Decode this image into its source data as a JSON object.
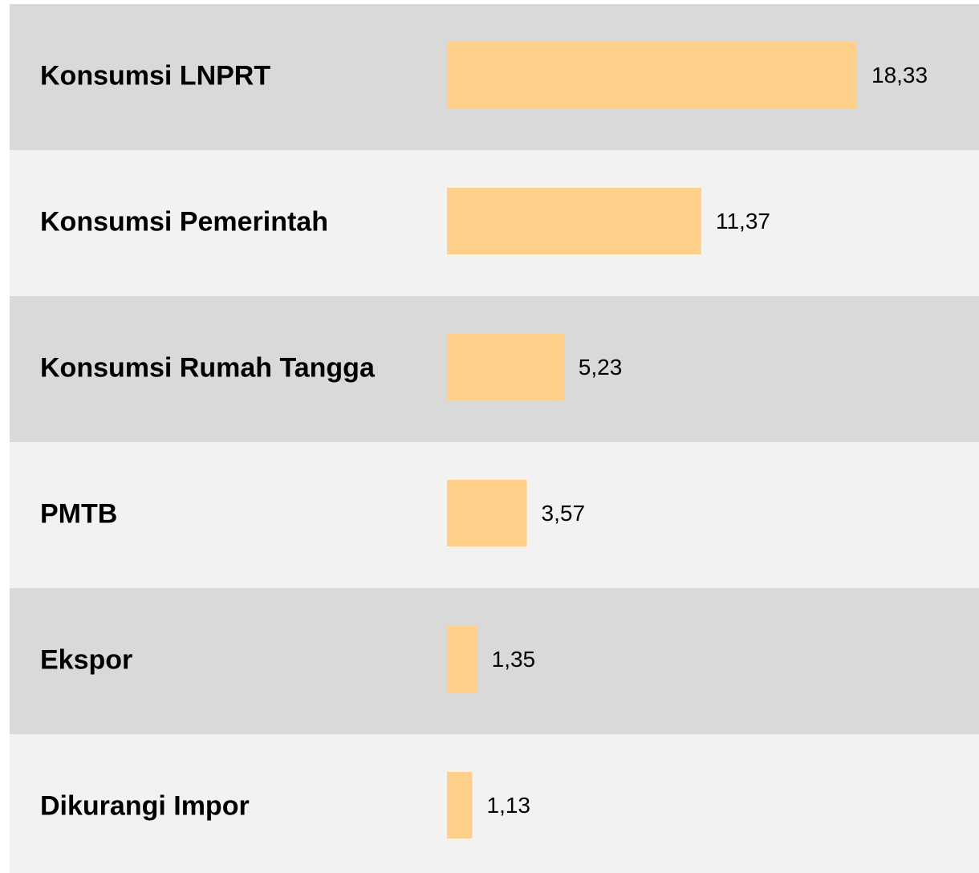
{
  "chart_data": {
    "type": "bar",
    "orientation": "horizontal",
    "categories": [
      "Konsumsi LNPRT",
      "Konsumsi Pemerintah",
      "Konsumsi Rumah Tangga",
      "PMTB",
      "Ekspor",
      "Dikurangi Impor"
    ],
    "values": [
      18.33,
      11.37,
      5.23,
      3.57,
      1.35,
      1.13
    ],
    "value_labels": [
      "18,33",
      "11,37",
      "5,23",
      "3,57",
      "1,35",
      "1,13"
    ],
    "color": "#fed08a"
  }
}
